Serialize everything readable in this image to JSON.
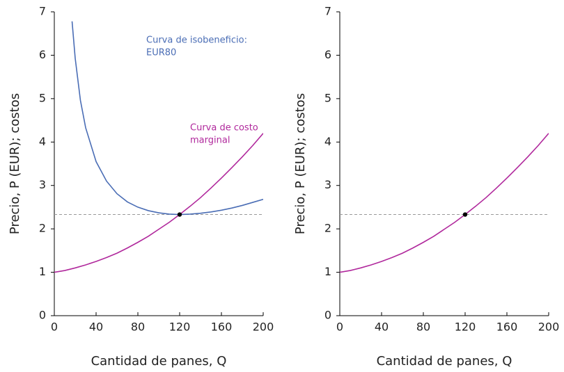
{
  "chart_data": [
    {
      "type": "line",
      "xlabel": "Cantidad de panes, Q",
      "ylabel": "Precio, P (EUR); costos",
      "xlim": [
        0,
        200
      ],
      "xticks": [
        0,
        40,
        80,
        120,
        160,
        200
      ],
      "ylim": [
        0,
        7
      ],
      "yticks": [
        0,
        1,
        2,
        3,
        4,
        5,
        6,
        7
      ],
      "hline": 2.33,
      "hline_color": "#999999",
      "points": [
        {
          "x": 120,
          "y": 2.33,
          "color": "#000000"
        }
      ],
      "series": [
        {
          "color": "#4a6db5",
          "x": [
            17,
            20,
            25,
            30,
            40,
            50,
            60,
            70,
            80,
            90,
            100,
            110,
            120,
            130,
            140,
            150,
            160,
            170,
            180,
            190,
            200
          ],
          "values": [
            6.78,
            5.93,
            4.96,
            4.33,
            3.55,
            3.1,
            2.81,
            2.62,
            2.5,
            2.42,
            2.37,
            2.34,
            2.33,
            2.34,
            2.36,
            2.39,
            2.43,
            2.48,
            2.54,
            2.61,
            2.68
          ]
        },
        {
          "color": "#b0289c",
          "x": [
            0,
            10,
            20,
            30,
            40,
            50,
            60,
            70,
            80,
            90,
            100,
            110,
            120,
            130,
            140,
            150,
            160,
            170,
            180,
            190,
            200
          ],
          "values": [
            1,
            1.04,
            1.1,
            1.17,
            1.25,
            1.34,
            1.44,
            1.56,
            1.69,
            1.83,
            1.99,
            2.15,
            2.33,
            2.52,
            2.72,
            2.94,
            3.17,
            3.41,
            3.66,
            3.92,
            4.2
          ]
        }
      ],
      "annotations": [
        {
          "lines": [
            "Curva de isobeneficio:",
            "EUR80"
          ],
          "color": "#4a6db5"
        },
        {
          "lines": [
            "Curva de costo",
            "marginal"
          ],
          "color": "#b0289c"
        }
      ]
    },
    {
      "type": "line",
      "xlabel": "Cantidad de panes, Q",
      "ylabel": "Precio, P (EUR); costos",
      "xlim": [
        0,
        200
      ],
      "xticks": [
        0,
        40,
        80,
        120,
        160,
        200
      ],
      "ylim": [
        0,
        7
      ],
      "yticks": [
        0,
        1,
        2,
        3,
        4,
        5,
        6,
        7
      ],
      "hline": 2.33,
      "hline_color": "#999999",
      "points": [
        {
          "x": 120,
          "y": 2.33,
          "color": "#000000"
        }
      ],
      "series": [
        {
          "color": "#b0289c",
          "x": [
            0,
            10,
            20,
            30,
            40,
            50,
            60,
            70,
            80,
            90,
            100,
            110,
            120,
            130,
            140,
            150,
            160,
            170,
            180,
            190,
            200
          ],
          "values": [
            1,
            1.04,
            1.1,
            1.17,
            1.25,
            1.34,
            1.44,
            1.56,
            1.69,
            1.83,
            1.99,
            2.15,
            2.33,
            2.52,
            2.72,
            2.94,
            3.17,
            3.41,
            3.66,
            3.92,
            4.2
          ]
        }
      ],
      "annotations": []
    }
  ]
}
